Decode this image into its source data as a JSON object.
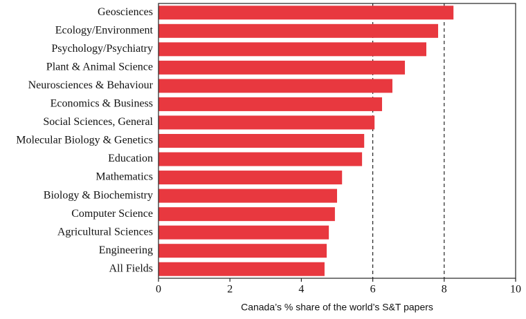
{
  "chart_data": {
    "type": "barh",
    "xlabel": "Canada’s % share of the world’s S&T papers",
    "categories": [
      "Geosciences",
      "Ecology/Environment",
      "Psychology/Psychiatry",
      "Plant & Animal Science",
      "Neurosciences & Behaviour",
      "Economics & Business",
      "Social Sciences, General",
      "Molecular Biology & Genetics",
      "Education",
      "Mathematics",
      "Biology & Biochemistry",
      "Computer Science",
      "Agricultural Sciences",
      "Engineering",
      "All Fields"
    ],
    "values": [
      8.26,
      7.83,
      7.5,
      6.9,
      6.55,
      6.26,
      6.05,
      5.76,
      5.7,
      5.14,
      5.0,
      4.94,
      4.77,
      4.71,
      4.65
    ],
    "color": "#e8383f",
    "xlim": [
      0,
      10
    ],
    "xticks": [
      0,
      2,
      4,
      6,
      8,
      10
    ],
    "reference_lines": [
      6,
      8
    ]
  }
}
